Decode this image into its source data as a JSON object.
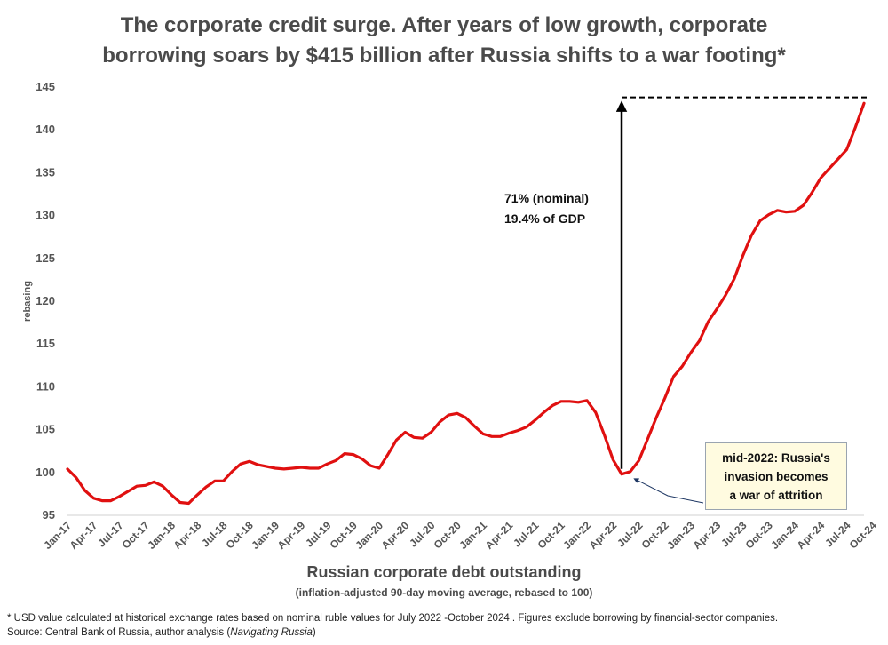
{
  "title_line1": "The corporate credit surge.  After years of low growth, corporate",
  "title_line2": "borrowing soars by $415 billion after Russia shifts to a war footing*",
  "chart_data": {
    "type": "line",
    "ylabel": "rebasing",
    "xlabel": "Russian corporate debt outstanding",
    "xlabel_sub": "(inflation-adjusted 90-day moving average, rebased to 100)",
    "ylim": [
      95,
      145
    ],
    "yticks": [
      95,
      100,
      105,
      110,
      115,
      120,
      125,
      130,
      135,
      140,
      145
    ],
    "grid": false,
    "line_color": "#e01010",
    "x_tick_labels": [
      "Jan-17",
      "Apr-17",
      "Jul-17",
      "Oct-17",
      "Jan-18",
      "Apr-18",
      "Jul-18",
      "Oct-18",
      "Jan-19",
      "Apr-19",
      "Jul-19",
      "Oct-19",
      "Jan-20",
      "Apr-20",
      "Jul-20",
      "Oct-20",
      "Jan-21",
      "Apr-21",
      "Jul-21",
      "Oct-21",
      "Jan-22",
      "Apr-22",
      "Jul-22",
      "Oct-22",
      "Jan-23",
      "Apr-23",
      "Jul-23",
      "Oct-23",
      "Jan-24",
      "Apr-24",
      "Jul-24",
      "Oct-24"
    ],
    "series": [
      {
        "values": [
          100.4,
          99.4,
          97.9,
          97.0,
          96.7,
          96.7,
          97.2,
          97.8,
          98.4,
          98.5,
          98.9,
          98.4,
          97.4,
          96.5,
          96.4,
          97.4,
          98.3,
          99.0,
          99.0,
          100.1,
          101.0,
          101.3,
          100.9,
          100.7,
          100.5,
          100.4,
          100.5,
          100.6,
          100.5,
          100.5,
          101.0,
          101.4,
          102.2,
          102.1,
          101.6,
          100.8,
          100.5,
          102.1,
          103.8,
          104.7,
          104.1,
          104.0,
          104.7,
          105.9,
          106.7,
          106.9,
          106.4,
          105.4,
          104.5,
          104.2,
          104.2,
          104.6,
          104.9,
          105.3,
          106.1,
          107.0,
          107.8,
          108.3,
          108.3,
          108.2,
          108.4,
          107.0,
          104.4,
          101.5,
          99.8,
          100.1,
          101.4,
          103.9,
          106.4,
          108.7,
          111.2,
          112.4,
          114.0,
          115.4,
          117.6,
          119.1,
          120.7,
          122.6,
          125.3,
          127.7,
          129.4,
          130.1,
          130.6,
          130.4,
          130.5,
          131.2,
          132.7,
          134.4,
          135.5,
          136.6,
          137.7,
          140.3,
          143.1
        ]
      }
    ],
    "reference_line_value": 143.8
  },
  "annotations": {
    "growth_line1": "71% (nominal)",
    "growth_line2": "19.4% of GDP",
    "callout_text": "mid-2022: Russia's\ninvasion becomes\na war of attrition"
  },
  "footnote_line1": "* USD value calculated at historical exchange rates based on nominal ruble values for July 2022 -October 2024 .  Figures exclude  borrowing by financial-sector companies.",
  "footnote_line2_prefix": "Source: Central Bank of Russia, author analysis (",
  "footnote_line2_italic": "Navigating Russia",
  "footnote_line2_suffix": ")"
}
